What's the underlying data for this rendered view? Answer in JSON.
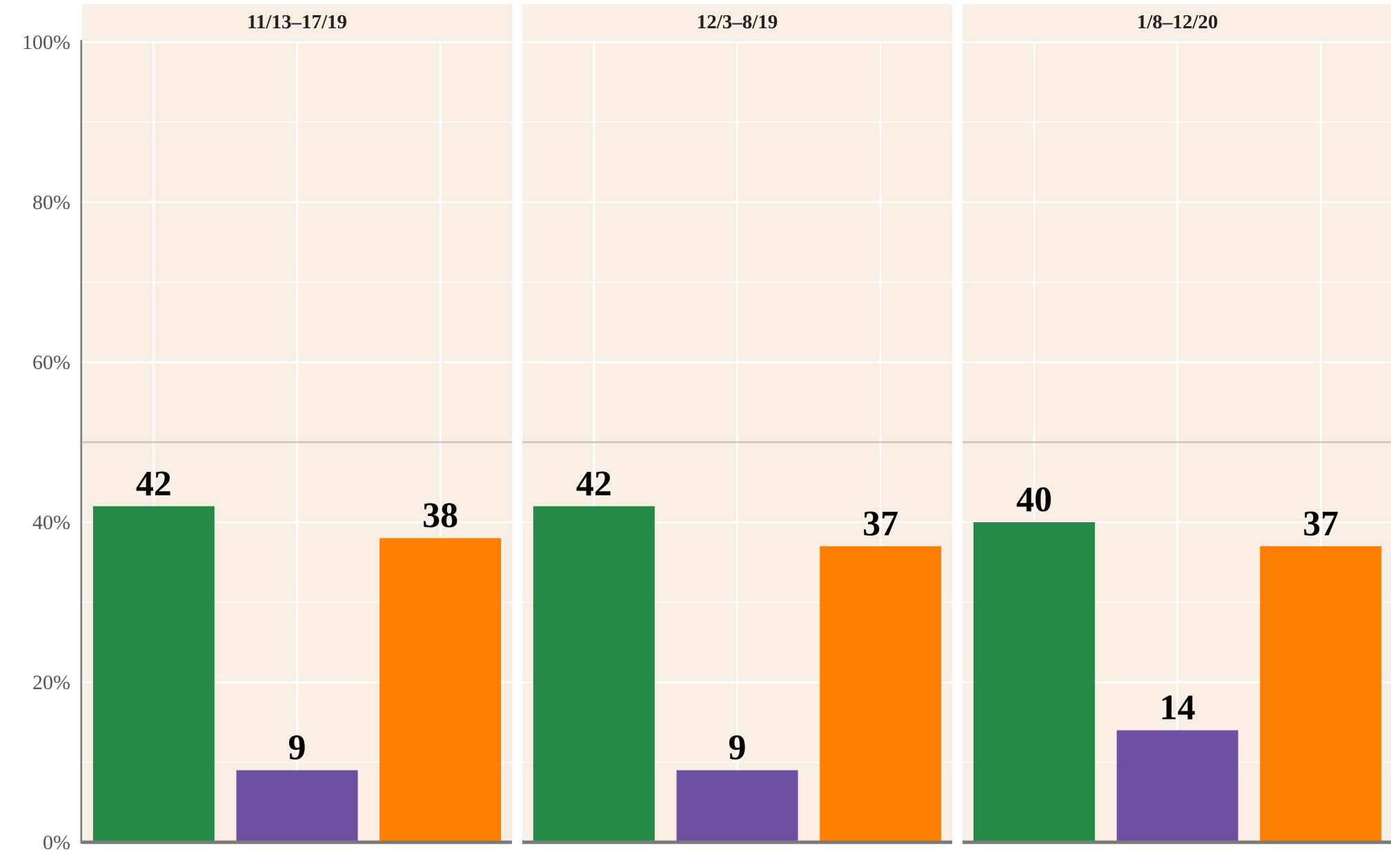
{
  "chart_data": {
    "type": "bar",
    "facets": [
      {
        "title": "11/13–17/19",
        "values": [
          42,
          9,
          38
        ]
      },
      {
        "title": "12/3–8/19",
        "values": [
          42,
          9,
          37
        ]
      },
      {
        "title": "1/8–12/20",
        "values": [
          40,
          14,
          37
        ]
      }
    ],
    "series_colors": [
      "#258a47",
      "#6a51a3",
      "#ff7f00"
    ],
    "ylim": [
      0,
      100
    ],
    "y_ticks": [
      "0%",
      "20%",
      "40%",
      "60%",
      "80%",
      "100%"
    ],
    "reference_line": 50,
    "grid": true,
    "panel_background": "#f9eee4"
  }
}
